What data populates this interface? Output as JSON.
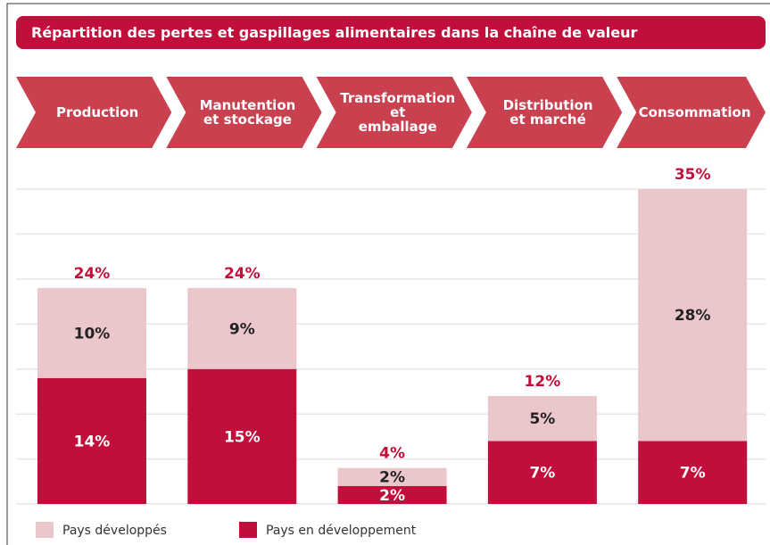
{
  "chart_data": {
    "type": "stacked_bar",
    "title": "Répartition des pertes et gaspillages alimentaires dans la chaîne de valeur",
    "categories": [
      "Production",
      "Manutention\net stockage",
      "Transformation\net\nemballage",
      "Distribution\net marché",
      "Consommation"
    ],
    "series": [
      {
        "name": "Pays en développement",
        "color": "#c20e3a",
        "label_color": "#ffffff",
        "values": [
          14,
          15,
          2,
          7,
          7
        ],
        "value_labels": [
          "14%",
          "15%",
          "2%",
          "7%",
          "7%"
        ]
      },
      {
        "name": "Pays développés",
        "color": "#ebc6ca",
        "label_color": "#222222",
        "values": [
          10,
          9,
          2,
          5,
          28
        ],
        "value_labels": [
          "10%",
          "9%",
          "2%",
          "5%",
          "28%"
        ]
      }
    ],
    "totals": [
      24,
      24,
      4,
      12,
      35
    ],
    "total_labels": [
      "24%",
      "24%",
      "4%",
      "12%",
      "35%"
    ],
    "ylim": [
      0,
      35
    ],
    "yticks": [
      0,
      5,
      10,
      15,
      20,
      25,
      30,
      35
    ],
    "grid": true
  }
}
